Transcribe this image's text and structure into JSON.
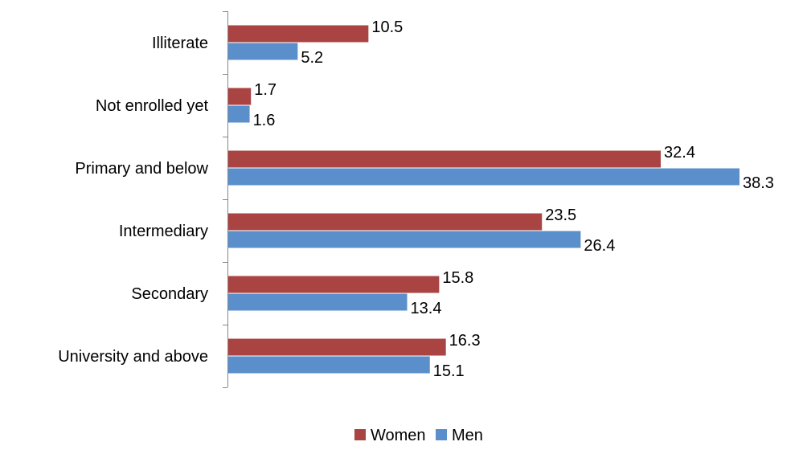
{
  "chart_data": {
    "type": "bar",
    "orientation": "horizontal",
    "categories": [
      "Illiterate",
      "Not enrolled yet",
      "Primary and below",
      "Intermediary",
      "Secondary",
      "University and above"
    ],
    "series": [
      {
        "name": "Women",
        "values": [
          10.5,
          1.7,
          32.4,
          23.5,
          15.8,
          16.3
        ],
        "color": "#a94442"
      },
      {
        "name": "Men",
        "values": [
          5.2,
          1.6,
          38.3,
          26.4,
          13.4,
          15.1
        ],
        "color": "#5b8fcc"
      }
    ],
    "value_labels": {
      "Women": [
        "10.5",
        "1.7",
        "32.4",
        "23.5",
        "15.8",
        "16.3"
      ],
      "Men": [
        "5.2",
        "1.6",
        "38.3",
        "26.4",
        "13.4",
        "15.1"
      ]
    },
    "title": "",
    "xlabel": "",
    "ylabel": "",
    "xlim": [
      0,
      38.3
    ],
    "grid": false,
    "legend": "bottom-center"
  }
}
